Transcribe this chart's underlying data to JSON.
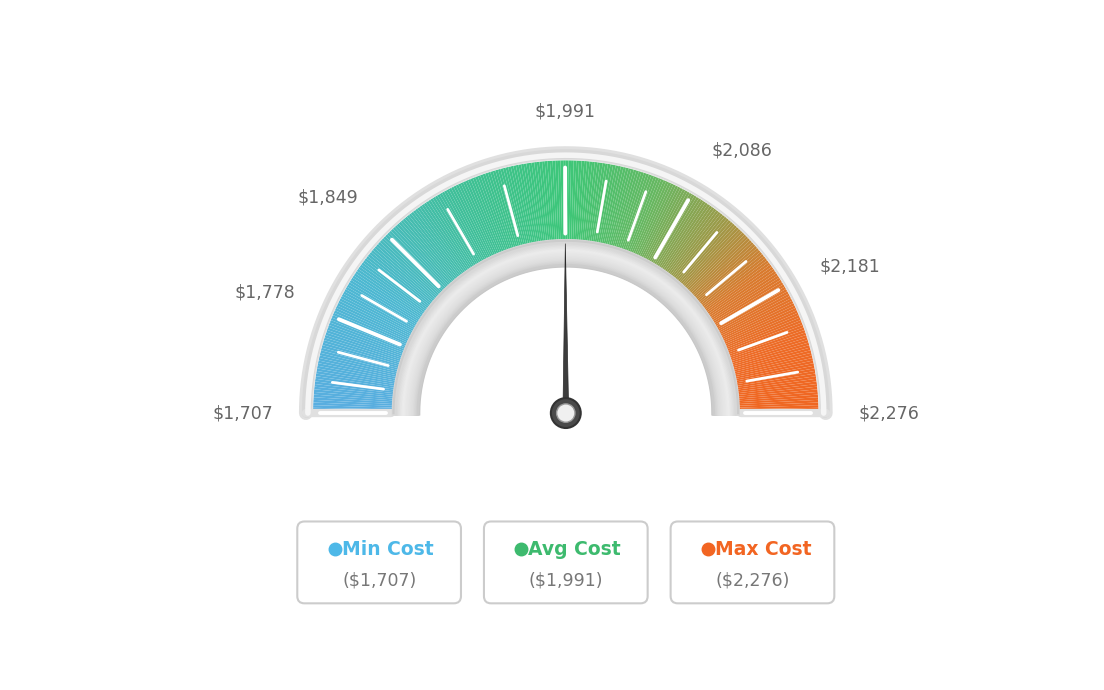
{
  "min_val": 1707,
  "max_val": 2276,
  "avg_val": 1991,
  "tick_labels": [
    "$1,707",
    "$1,778",
    "$1,849",
    "$1,991",
    "$2,086",
    "$2,181",
    "$2,276"
  ],
  "tick_values": [
    1707,
    1778,
    1849,
    1991,
    2086,
    2181,
    2276
  ],
  "legend_labels": [
    "Min Cost",
    "Avg Cost",
    "Max Cost"
  ],
  "legend_values": [
    "($1,707)",
    "($1,991)",
    "($2,276)"
  ],
  "legend_colors": [
    "#4db8e8",
    "#3dba6e",
    "#f26522"
  ],
  "background_color": "#ffffff",
  "outer_r": 0.88,
  "inner_r": 0.6,
  "label_r": 1.02,
  "gradient_colors": [
    [
      0.0,
      [
        0.35,
        0.68,
        0.88
      ]
    ],
    [
      0.18,
      [
        0.3,
        0.72,
        0.82
      ]
    ],
    [
      0.35,
      [
        0.25,
        0.75,
        0.6
      ]
    ],
    [
      0.5,
      [
        0.24,
        0.78,
        0.47
      ]
    ],
    [
      0.62,
      [
        0.4,
        0.72,
        0.38
      ]
    ],
    [
      0.72,
      [
        0.62,
        0.6,
        0.28
      ]
    ],
    [
      0.8,
      [
        0.85,
        0.48,
        0.18
      ]
    ],
    [
      0.9,
      [
        0.93,
        0.42,
        0.15
      ]
    ],
    [
      1.0,
      [
        0.94,
        0.4,
        0.13
      ]
    ]
  ]
}
